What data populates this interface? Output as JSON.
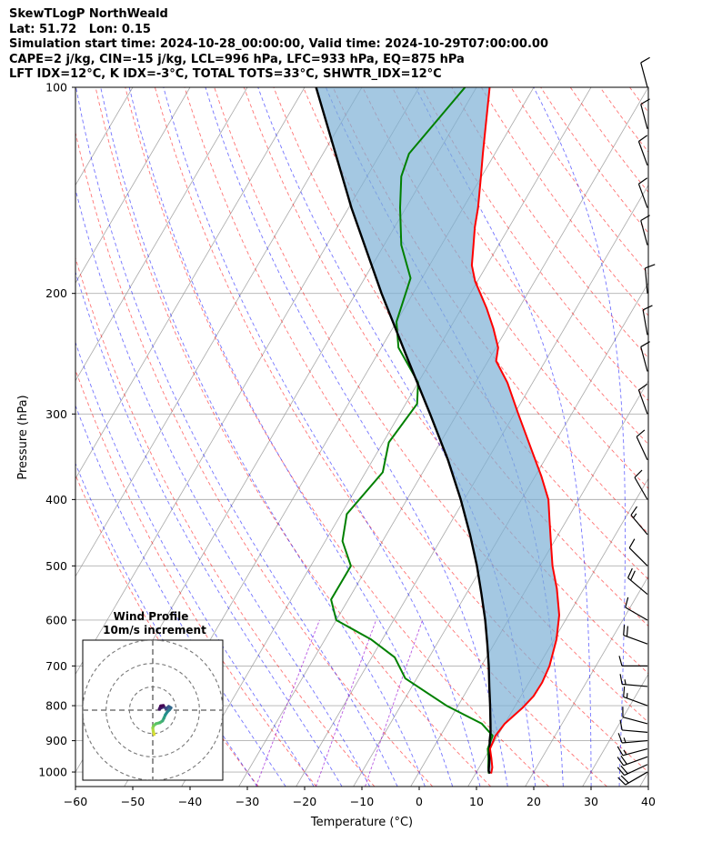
{
  "header": {
    "line1": "SkewTLogP NorthWeald",
    "line2": "Lat: 51.72   Lon: 0.15",
    "line3": "Simulation start time: 2024-10-28_00:00:00, Valid time: 2024-10-29T07:00:00.00",
    "line4": "CAPE=2 j/kg, CIN=-15 j/kg, LCL=996 hPa, LFC=933 hPa, EQ=875 hPa",
    "line5": "LFT IDX=12°C, K IDX=-3°C, TOTAL TOTS=33°C, SHWTR_IDX=12°C"
  },
  "colors": {
    "temperature": "#ff0000",
    "dewpoint": "#008000",
    "parcel": "#000000",
    "cape_fill": "#7eb0d5",
    "dry_adiabat": "#ff0000",
    "moist_adiabat": "#0000ff",
    "mixing_ratio": "#9400d3",
    "isotherm": "#999999"
  },
  "chart_data": {
    "type": "skewt-logp",
    "xlabel": "Temperature (°C)",
    "ylabel": "Pressure (hPa)",
    "xlim": [
      -60,
      40
    ],
    "ylim": [
      1050,
      100
    ],
    "skew_deg_per_decade": 70,
    "x_ticks": [
      -60,
      -50,
      -40,
      -30,
      -20,
      -10,
      0,
      10,
      20,
      30,
      40
    ],
    "x_tick_labels": [
      "−60",
      "−50",
      "−40",
      "−30",
      "−20",
      "−10",
      "0",
      "10",
      "20",
      "30",
      "40"
    ],
    "y_ticks": [
      1000,
      900,
      800,
      700,
      600,
      500,
      400,
      300,
      200,
      100
    ],
    "temperature": [
      {
        "p": 1005,
        "t": 12.7
      },
      {
        "p": 985,
        "t": 12.3
      },
      {
        "p": 955,
        "t": 11.2
      },
      {
        "p": 925,
        "t": 10.0
      },
      {
        "p": 885,
        "t": 9.6
      },
      {
        "p": 850,
        "t": 10.0
      },
      {
        "p": 805,
        "t": 11.5
      },
      {
        "p": 775,
        "t": 12.2
      },
      {
        "p": 740,
        "t": 12.3
      },
      {
        "p": 700,
        "t": 11.9
      },
      {
        "p": 640,
        "t": 10.4
      },
      {
        "p": 590,
        "t": 8.4
      },
      {
        "p": 540,
        "t": 5.3
      },
      {
        "p": 500,
        "t": 2.2
      },
      {
        "p": 470,
        "t": 0.1
      },
      {
        "p": 430,
        "t": -2.9
      },
      {
        "p": 400,
        "t": -5.3
      },
      {
        "p": 370,
        "t": -8.9
      },
      {
        "p": 340,
        "t": -13.1
      },
      {
        "p": 300,
        "t": -19.3
      },
      {
        "p": 270,
        "t": -24.4
      },
      {
        "p": 251,
        "t": -28.6
      },
      {
        "p": 240,
        "t": -29.6
      },
      {
        "p": 225,
        "t": -32.4
      },
      {
        "p": 210,
        "t": -35.7
      },
      {
        "p": 192,
        "t": -40.4
      },
      {
        "p": 182,
        "t": -42.6
      },
      {
        "p": 170,
        "t": -44.4
      },
      {
        "p": 160,
        "t": -46.0
      },
      {
        "p": 150,
        "t": -47.4
      },
      {
        "p": 135,
        "t": -50.1
      },
      {
        "p": 125,
        "t": -52.1
      },
      {
        "p": 115,
        "t": -54.2
      },
      {
        "p": 100,
        "t": -57.7
      }
    ],
    "dewpoint": [
      {
        "p": 1005,
        "t": 12.3
      },
      {
        "p": 985,
        "t": 11.6
      },
      {
        "p": 955,
        "t": 10.7
      },
      {
        "p": 925,
        "t": 9.6
      },
      {
        "p": 885,
        "t": 9.1
      },
      {
        "p": 850,
        "t": 6.0
      },
      {
        "p": 800,
        "t": -2.0
      },
      {
        "p": 730,
        "t": -12.0
      },
      {
        "p": 680,
        "t": -16.0
      },
      {
        "p": 640,
        "t": -22.0
      },
      {
        "p": 600,
        "t": -30.0
      },
      {
        "p": 560,
        "t": -33.0
      },
      {
        "p": 500,
        "t": -33.0
      },
      {
        "p": 460,
        "t": -37.0
      },
      {
        "p": 420,
        "t": -39.0
      },
      {
        "p": 365,
        "t": -37.0
      },
      {
        "p": 330,
        "t": -39.0
      },
      {
        "p": 290,
        "t": -38.0
      },
      {
        "p": 270,
        "t": -40.0
      },
      {
        "p": 240,
        "t": -47.0
      },
      {
        "p": 220,
        "t": -50.0
      },
      {
        "p": 190,
        "t": -52.0
      },
      {
        "p": 170,
        "t": -57.0
      },
      {
        "p": 150,
        "t": -61.0
      },
      {
        "p": 135,
        "t": -64.0
      },
      {
        "p": 125,
        "t": -65.0
      },
      {
        "p": 100,
        "t": -62.0
      }
    ],
    "parcel": [
      {
        "p": 1005,
        "t": 12.5
      },
      {
        "p": 996,
        "t": 12.0
      },
      {
        "p": 970,
        "t": 11.3
      },
      {
        "p": 933,
        "t": 10.2
      },
      {
        "p": 900,
        "t": 9.1
      },
      {
        "p": 875,
        "t": 8.4
      },
      {
        "p": 850,
        "t": 7.5
      },
      {
        "p": 800,
        "t": 5.6
      },
      {
        "p": 750,
        "t": 3.5
      },
      {
        "p": 700,
        "t": 1.3
      },
      {
        "p": 650,
        "t": -1.2
      },
      {
        "p": 600,
        "t": -4.0
      },
      {
        "p": 550,
        "t": -7.3
      },
      {
        "p": 500,
        "t": -11.0
      },
      {
        "p": 450,
        "t": -15.4
      },
      {
        "p": 400,
        "t": -20.6
      },
      {
        "p": 350,
        "t": -26.9
      },
      {
        "p": 300,
        "t": -34.7
      },
      {
        "p": 250,
        "t": -44.1
      },
      {
        "p": 200,
        "t": -55.5
      },
      {
        "p": 150,
        "t": -69.5
      },
      {
        "p": 100,
        "t": -88.0
      }
    ],
    "wind_barbs": [
      {
        "p": 1000,
        "dir": 240,
        "spd": 20
      },
      {
        "p": 975,
        "dir": 245,
        "spd": 22
      },
      {
        "p": 950,
        "dir": 250,
        "spd": 20
      },
      {
        "p": 925,
        "dir": 255,
        "spd": 18
      },
      {
        "p": 900,
        "dir": 265,
        "spd": 15
      },
      {
        "p": 875,
        "dir": 275,
        "spd": 12
      },
      {
        "p": 850,
        "dir": 285,
        "spd": 12
      },
      {
        "p": 800,
        "dir": 290,
        "spd": 15
      },
      {
        "p": 750,
        "dir": 275,
        "spd": 15
      },
      {
        "p": 700,
        "dir": 270,
        "spd": 12
      },
      {
        "p": 650,
        "dir": 290,
        "spd": 20
      },
      {
        "p": 600,
        "dir": 300,
        "spd": 12
      },
      {
        "p": 550,
        "dir": 310,
        "spd": 20
      },
      {
        "p": 500,
        "dir": 315,
        "spd": 12
      },
      {
        "p": 450,
        "dir": 320,
        "spd": 15
      },
      {
        "p": 400,
        "dir": 330,
        "spd": 10
      },
      {
        "p": 350,
        "dir": 335,
        "spd": 10
      },
      {
        "p": 300,
        "dir": 340,
        "spd": 10
      },
      {
        "p": 260,
        "dir": 345,
        "spd": 12
      },
      {
        "p": 230,
        "dir": 350,
        "spd": 10
      },
      {
        "p": 200,
        "dir": 355,
        "spd": 12
      },
      {
        "p": 170,
        "dir": 345,
        "spd": 10
      },
      {
        "p": 150,
        "dir": 340,
        "spd": 10
      },
      {
        "p": 130,
        "dir": 340,
        "spd": 10
      },
      {
        "p": 115,
        "dir": 345,
        "spd": 10
      },
      {
        "p": 100,
        "dir": 345,
        "spd": 10
      }
    ],
    "hodograph": {
      "title": "Wind Profile",
      "subtitle": "10m/s increment",
      "rings_ms": [
        10,
        20,
        30
      ],
      "range_ms": 30,
      "points": [
        {
          "u": 0.6,
          "v": -10.4
        },
        {
          "u": 0.2,
          "v": -9.0
        },
        {
          "u": 0.0,
          "v": -7.6
        },
        {
          "u": 0.4,
          "v": -6.6
        },
        {
          "u": 1.4,
          "v": -5.8
        },
        {
          "u": 3.0,
          "v": -5.4
        },
        {
          "u": 4.2,
          "v": -4.6
        },
        {
          "u": 4.8,
          "v": -3.4
        },
        {
          "u": 5.4,
          "v": -2.0
        },
        {
          "u": 6.2,
          "v": -0.8
        },
        {
          "u": 7.2,
          "v": 0.2
        },
        {
          "u": 7.8,
          "v": 1.0
        },
        {
          "u": 6.8,
          "v": 1.6
        },
        {
          "u": 5.8,
          "v": 0.6
        },
        {
          "u": 4.8,
          "v": 1.4
        },
        {
          "u": 3.6,
          "v": 1.0
        },
        {
          "u": 2.8,
          "v": 0.4
        },
        {
          "u": 3.4,
          "v": 1.8
        },
        {
          "u": 4.6,
          "v": 2.0
        }
      ]
    }
  }
}
